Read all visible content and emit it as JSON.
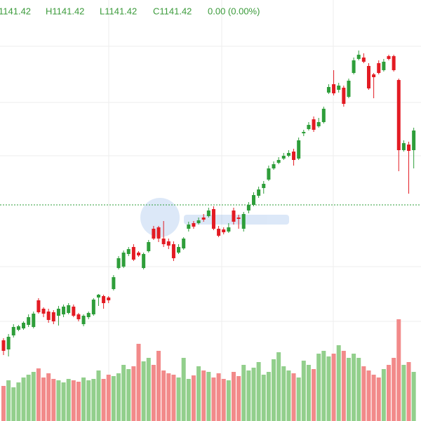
{
  "header": {
    "open": "1141.42",
    "high": "H1141.42",
    "low": "L1141.42",
    "close": "C1141.42",
    "change": "0.00 (0.00%)"
  },
  "chart_data": {
    "type": "candlestick",
    "up_color": "#2e9e3a",
    "down_color": "#e31b23",
    "volume_up_color": "#92cf8c",
    "volume_down_color": "#f28a8a",
    "ylim": [
      1000,
      1500
    ],
    "volume_lim": [
      0,
      160
    ],
    "open": [
      1043,
      1030,
      1050,
      1058,
      1060,
      1065,
      1062,
      1100,
      1088,
      1084,
      1083,
      1078,
      1080,
      1082,
      1091,
      1080,
      1066,
      1076,
      1080,
      1104,
      1106,
      1104,
      1116,
      1146,
      1148,
      1166,
      1176,
      1168,
      1146,
      1170,
      1202,
      1204,
      1188,
      1184,
      1180,
      1168,
      1174,
      1202,
      1210,
      1210,
      1218,
      1220,
      1230,
      1202,
      1201,
      1198,
      1228,
      1218,
      1202,
      1228,
      1236,
      1249,
      1260,
      1272,
      1288,
      1296,
      1302,
      1306,
      1312,
      1302,
      1338,
      1344,
      1358,
      1348,
      1354,
      1396,
      1408,
      1400,
      1403,
      1390,
      1424,
      1444,
      1446,
      1434,
      1422,
      1438,
      1428,
      1448,
      1448,
      1414,
      1314,
      1322,
      1314
    ],
    "high": [
      1046,
      1052,
      1066,
      1065,
      1070,
      1080,
      1084,
      1103,
      1090,
      1088,
      1086,
      1092,
      1094,
      1096,
      1094,
      1082,
      1080,
      1084,
      1103,
      1109,
      1108,
      1106,
      1136,
      1163,
      1171,
      1176,
      1180,
      1170,
      1168,
      1186,
      1206,
      1206,
      1213,
      1188,
      1184,
      1180,
      1190,
      1212,
      1213,
      1218,
      1223,
      1232,
      1234,
      1206,
      1204,
      1210,
      1232,
      1222,
      1226,
      1240,
      1254,
      1262,
      1270,
      1292,
      1298,
      1304,
      1310,
      1314,
      1316,
      1332,
      1343,
      1354,
      1362,
      1360,
      1376,
      1408,
      1428,
      1410,
      1406,
      1416,
      1446,
      1456,
      1452,
      1438,
      1424,
      1442,
      1444,
      1450,
      1450,
      1416,
      1328,
      1326,
      1346
    ],
    "low": [
      1022,
      1020,
      1047,
      1056,
      1058,
      1062,
      1060,
      1081,
      1076,
      1068,
      1066,
      1064,
      1076,
      1080,
      1076,
      1070,
      1063,
      1073,
      1078,
      1092,
      1088,
      1096,
      1114,
      1144,
      1146,
      1163,
      1156,
      1162,
      1144,
      1168,
      1186,
      1183,
      1176,
      1173,
      1156,
      1166,
      1172,
      1198,
      1202,
      1208,
      1212,
      1218,
      1200,
      1190,
      1194,
      1196,
      1208,
      1202,
      1198,
      1224,
      1234,
      1246,
      1252,
      1270,
      1286,
      1294,
      1300,
      1304,
      1292,
      1300,
      1334,
      1342,
      1340,
      1346,
      1352,
      1394,
      1392,
      1396,
      1376,
      1388,
      1422,
      1442,
      1438,
      1400,
      1388,
      1422,
      1426,
      1442,
      1426,
      1284,
      1312,
      1252,
      1288
    ],
    "close": [
      1028,
      1048,
      1062,
      1063,
      1068,
      1076,
      1081,
      1083,
      1081,
      1072,
      1070,
      1088,
      1091,
      1093,
      1078,
      1073,
      1078,
      1082,
      1101,
      1108,
      1096,
      1100,
      1133,
      1160,
      1168,
      1173,
      1158,
      1164,
      1166,
      1183,
      1188,
      1188,
      1180,
      1178,
      1160,
      1176,
      1188,
      1208,
      1205,
      1214,
      1215,
      1228,
      1202,
      1192,
      1197,
      1204,
      1212,
      1216,
      1223,
      1236,
      1250,
      1258,
      1266,
      1288,
      1294,
      1300,
      1306,
      1310,
      1300,
      1328,
      1340,
      1350,
      1343,
      1354,
      1373,
      1404,
      1395,
      1406,
      1380,
      1413,
      1442,
      1450,
      1440,
      1402,
      1418,
      1424,
      1440,
      1444,
      1428,
      1314,
      1324,
      1313,
      1342
    ],
    "volume": [
      50,
      58,
      48,
      55,
      62,
      66,
      70,
      75,
      62,
      68,
      60,
      58,
      55,
      60,
      58,
      56,
      62,
      58,
      60,
      72,
      60,
      66,
      64,
      68,
      80,
      74,
      78,
      110,
      85,
      90,
      80,
      100,
      72,
      68,
      66,
      62,
      90,
      60,
      65,
      78,
      72,
      70,
      62,
      68,
      60,
      58,
      70,
      64,
      80,
      72,
      76,
      84,
      66,
      70,
      88,
      98,
      78,
      72,
      68,
      62,
      86,
      80,
      74,
      96,
      100,
      92,
      96,
      108,
      100,
      90,
      96,
      90,
      78,
      72,
      66,
      62,
      74,
      80,
      90,
      145,
      80,
      84,
      70
    ]
  }
}
